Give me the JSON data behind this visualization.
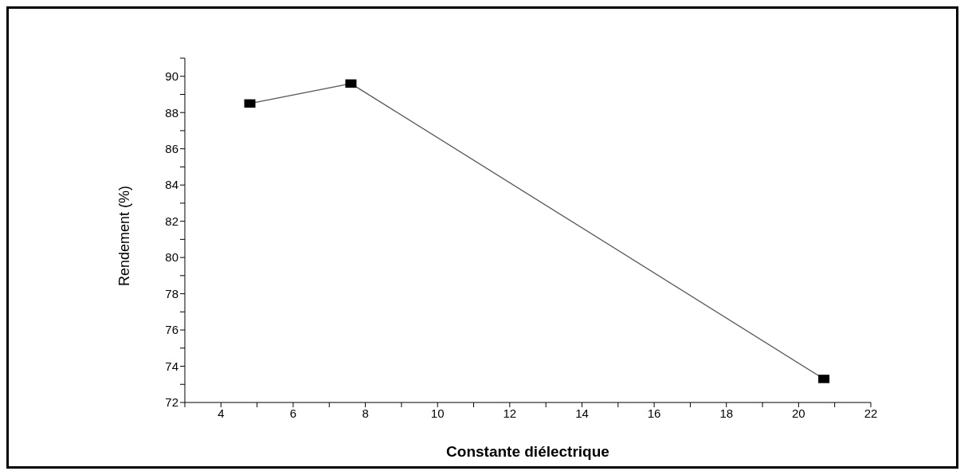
{
  "chart_data": {
    "type": "line",
    "xlabel": "Constante diélectrique",
    "ylabel": "Rendement (%)",
    "x": [
      4.8,
      7.6,
      20.7
    ],
    "series": [
      {
        "color": "#000000",
        "values": [
          88.5,
          89.6,
          73.3
        ]
      }
    ],
    "xlim": [
      3,
      22
    ],
    "xticks": [
      {
        "value": 3,
        "label": null
      },
      4,
      {
        "value": 5,
        "label": null
      },
      6,
      {
        "value": 7,
        "label": null
      },
      8,
      {
        "value": 9,
        "label": null
      },
      10,
      {
        "value": 11,
        "label": null
      },
      12,
      {
        "value": 13,
        "label": null
      },
      14,
      {
        "value": 15,
        "label": null
      },
      16,
      {
        "value": 17,
        "label": null
      },
      18,
      {
        "value": 19,
        "label": null
      },
      20,
      {
        "value": 21,
        "label": null
      },
      22
    ],
    "ylim": [
      72,
      91
    ],
    "yticks": [
      72,
      {
        "value": 73,
        "label": null
      },
      74,
      {
        "value": 75,
        "label": null
      },
      76,
      {
        "value": 77,
        "label": null
      },
      78,
      {
        "value": 79,
        "label": null
      },
      80,
      {
        "value": 81,
        "label": null
      },
      82,
      {
        "value": 83,
        "label": null
      },
      84,
      {
        "value": 85,
        "label": null
      },
      86,
      {
        "value": 87,
        "label": null
      },
      88,
      {
        "value": 89,
        "label": null
      },
      90,
      {
        "value": 91,
        "label": null
      }
    ],
    "grid": false,
    "legend": false,
    "marker": "square",
    "line_style": "solid"
  }
}
